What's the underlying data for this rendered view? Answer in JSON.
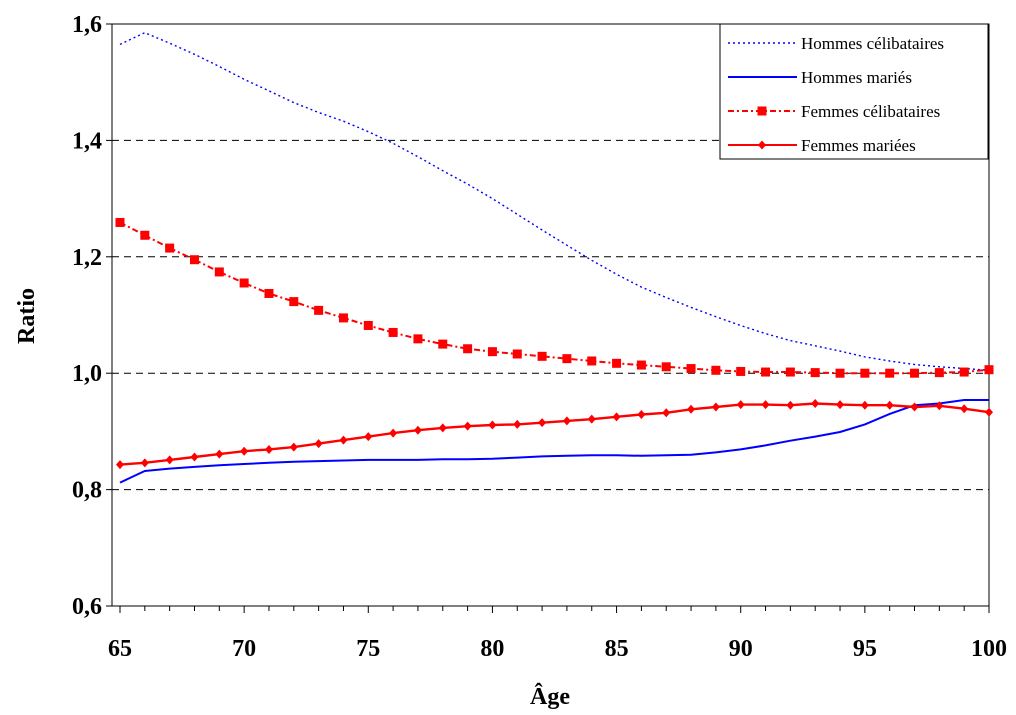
{
  "chart_data": {
    "type": "line",
    "xlabel": "Âge",
    "ylabel": "Ratio",
    "xlim": [
      65,
      100
    ],
    "ylim": [
      0.6,
      1.6
    ],
    "xticks": [
      "65",
      "70",
      "75",
      "80",
      "85",
      "90",
      "95",
      "100"
    ],
    "yticks": [
      "0,6",
      "0,8",
      "1,0",
      "1,2",
      "1,4",
      "1,6"
    ],
    "grid": "horizontal dashed",
    "legend_position": "top-right",
    "x": [
      65,
      66,
      67,
      68,
      69,
      70,
      71,
      72,
      73,
      74,
      75,
      76,
      77,
      78,
      79,
      80,
      81,
      82,
      83,
      84,
      85,
      86,
      87,
      88,
      89,
      90,
      91,
      92,
      93,
      94,
      95,
      96,
      97,
      98,
      99,
      100
    ],
    "series": [
      {
        "name": "Hommes célibataires",
        "color": "#0000ff",
        "style": "dotted",
        "marker": "none",
        "values": [
          1.565,
          1.585,
          1.567,
          1.548,
          1.527,
          1.505,
          1.485,
          1.465,
          1.448,
          1.433,
          1.415,
          1.395,
          1.372,
          1.348,
          1.325,
          1.3,
          1.273,
          1.246,
          1.22,
          1.194,
          1.17,
          1.148,
          1.13,
          1.113,
          1.097,
          1.082,
          1.068,
          1.056,
          1.047,
          1.038,
          1.028,
          1.021,
          1.015,
          1.011,
          1.008,
          1.005
        ]
      },
      {
        "name": "Hommes mariés",
        "color": "#0000ff",
        "style": "solid",
        "marker": "none",
        "values": [
          0.812,
          0.832,
          0.836,
          0.839,
          0.842,
          0.844,
          0.846,
          0.848,
          0.849,
          0.85,
          0.851,
          0.851,
          0.851,
          0.852,
          0.852,
          0.853,
          0.855,
          0.857,
          0.858,
          0.859,
          0.859,
          0.858,
          0.859,
          0.86,
          0.864,
          0.869,
          0.876,
          0.884,
          0.891,
          0.899,
          0.912,
          0.93,
          0.945,
          0.948,
          0.954,
          0.954
        ]
      },
      {
        "name": "Femmes célibataires",
        "color": "#ff0000",
        "style": "dashdot",
        "marker": "square",
        "values": [
          1.259,
          1.237,
          1.215,
          1.195,
          1.174,
          1.155,
          1.137,
          1.123,
          1.108,
          1.095,
          1.082,
          1.07,
          1.059,
          1.05,
          1.042,
          1.037,
          1.033,
          1.029,
          1.025,
          1.021,
          1.017,
          1.014,
          1.011,
          1.008,
          1.005,
          1.003,
          1.002,
          1.002,
          1.001,
          1.0,
          1.0,
          1.0,
          1.0,
          1.001,
          1.002,
          1.006
        ]
      },
      {
        "name": "Femmes mariées",
        "color": "#ff0000",
        "style": "solid",
        "marker": "diamond",
        "values": [
          0.843,
          0.846,
          0.851,
          0.856,
          0.861,
          0.866,
          0.869,
          0.873,
          0.879,
          0.885,
          0.891,
          0.897,
          0.902,
          0.906,
          0.909,
          0.911,
          0.912,
          0.915,
          0.918,
          0.921,
          0.925,
          0.929,
          0.932,
          0.938,
          0.942,
          0.946,
          0.946,
          0.945,
          0.948,
          0.946,
          0.945,
          0.945,
          0.942,
          0.944,
          0.939,
          0.933
        ]
      }
    ]
  }
}
